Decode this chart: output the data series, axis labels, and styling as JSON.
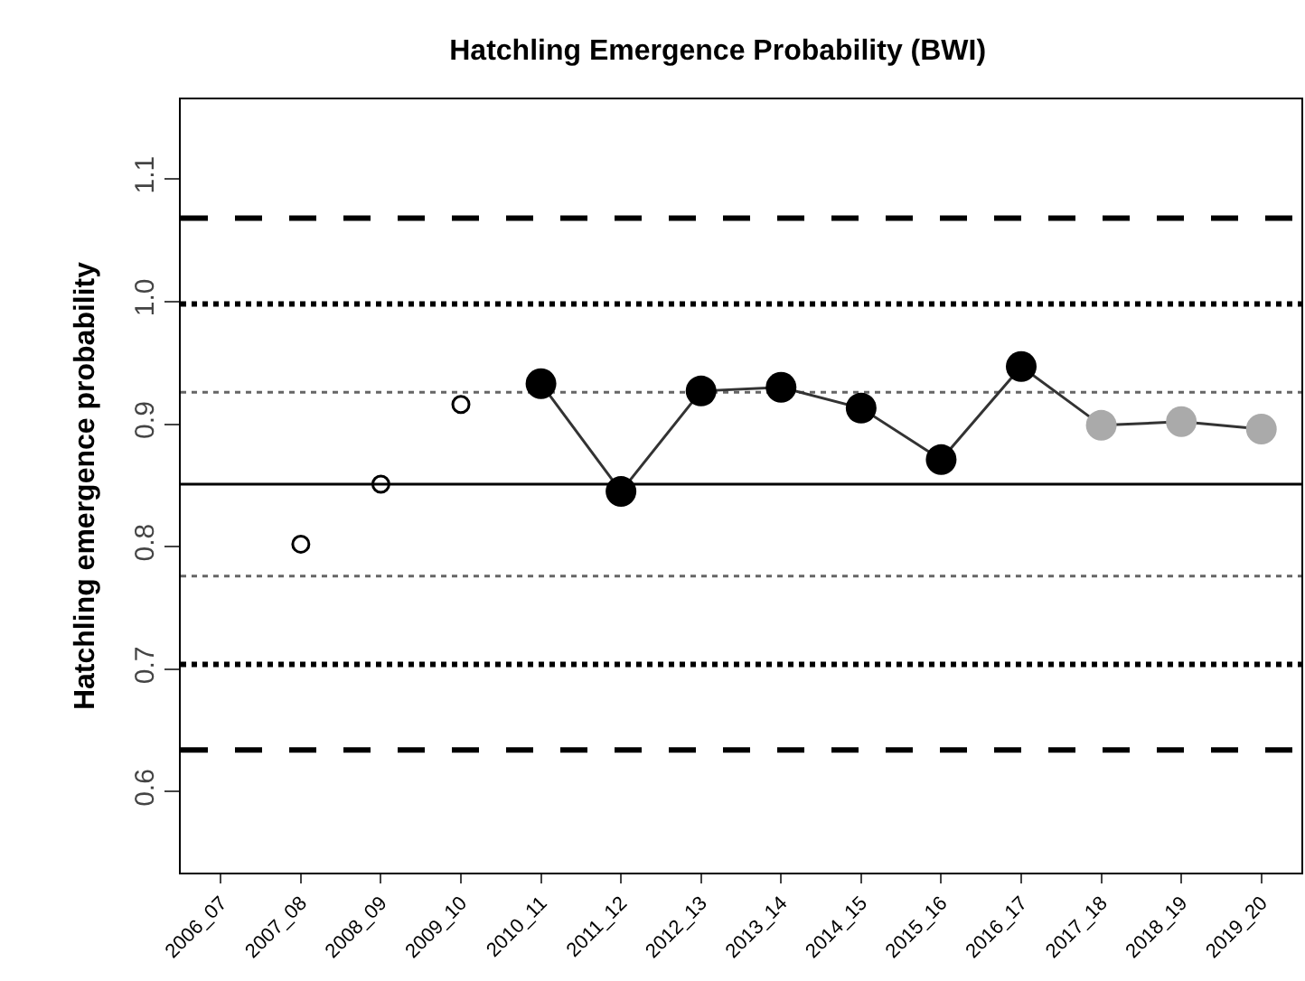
{
  "chart_data": {
    "type": "line",
    "title": "Hatchling Emergence Probability (BWI)",
    "ylabel": "Hatchling emergence probability",
    "categories": [
      "2006_07",
      "2007_08",
      "2008_09",
      "2009_10",
      "2010_11",
      "2011_12",
      "2012_13",
      "2013_14",
      "2014_15",
      "2015_16",
      "2016_17",
      "2017_18",
      "2018_19",
      "2019_20"
    ],
    "series": [
      {
        "type": "scatter",
        "color": "#000000",
        "marker": "circle",
        "values": [
          null,
          0.802,
          0.851,
          0.916,
          null,
          null,
          null,
          null,
          null,
          null,
          null,
          null,
          null,
          null
        ]
      },
      {
        "color": "#333333",
        "marker": "circle",
        "colors": [
          null,
          null,
          null,
          null,
          "#000000",
          "#000000",
          "#000000",
          "#000000",
          "#000000",
          "#000000",
          "#000000",
          "#aaaaaa",
          "#aaaaaa",
          "#aaaaaa"
        ],
        "values": [
          null,
          null,
          null,
          null,
          0.933,
          0.845,
          0.927,
          0.93,
          0.913,
          0.871,
          0.947,
          0.899,
          0.902,
          0.896
        ]
      }
    ],
    "ylim": [
      0.534,
      1.165
    ],
    "yticks": [
      0.6,
      0.7,
      0.8,
      0.9,
      {
        "value": 1.0,
        "label": "1.0"
      },
      1.1
    ],
    "grid": false,
    "legend": false,
    "ref_lines": [
      {
        "axis": "y",
        "value": 1.068,
        "color": "#000000",
        "line_style": "dashed"
      },
      {
        "axis": "y",
        "value": 0.998,
        "color": "#000000",
        "line_style": "dotted"
      },
      {
        "axis": "y",
        "value": 0.926,
        "color": "#666666",
        "line_style": "dotted"
      },
      {
        "axis": "y",
        "value": 0.851,
        "color": "#000000",
        "line_style": "solid"
      },
      {
        "axis": "y",
        "value": 0.776,
        "color": "#666666",
        "line_style": "dotted"
      },
      {
        "axis": "y",
        "value": 0.704,
        "color": "#000000",
        "line_style": "dotted"
      },
      {
        "axis": "y",
        "value": 0.634,
        "color": "#000000",
        "line_style": "dashed"
      }
    ]
  }
}
